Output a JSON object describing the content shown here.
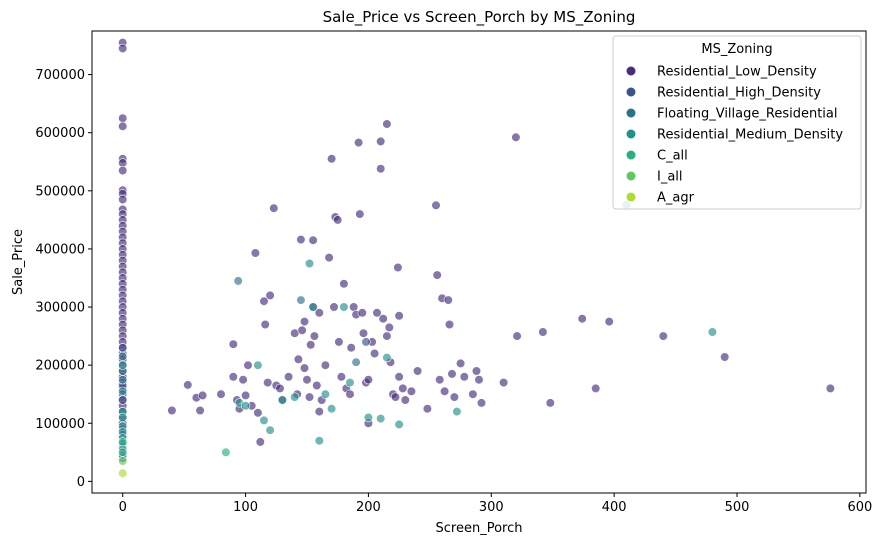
{
  "chart_data": {
    "type": "scatter",
    "title": "Sale_Price vs Screen_Porch by MS_Zoning",
    "xlabel": "Screen_Porch",
    "ylabel": "Sale_Price",
    "xlim": [
      -25,
      605
    ],
    "ylim": [
      -20000,
      775000
    ],
    "xticks": [
      0,
      100,
      200,
      300,
      400,
      500,
      600
    ],
    "yticks": [
      0,
      100000,
      200000,
      300000,
      400000,
      500000,
      600000,
      700000
    ],
    "grid": false,
    "legend": {
      "title": "MS_Zoning",
      "placement": "top-right"
    },
    "series": [
      {
        "name": "Residential_Low_Density",
        "color": "#472d7b",
        "points": [
          [
            0,
            755000
          ],
          [
            0,
            745000
          ],
          [
            0,
            625000
          ],
          [
            0,
            611000
          ],
          [
            0,
            555000
          ],
          [
            0,
            548000
          ],
          [
            0,
            535000
          ],
          [
            0,
            501000
          ],
          [
            0,
            495000
          ],
          [
            0,
            485000
          ],
          [
            0,
            468000
          ],
          [
            0,
            460000
          ],
          [
            0,
            450000
          ],
          [
            0,
            440000
          ],
          [
            0,
            430000
          ],
          [
            0,
            420000
          ],
          [
            0,
            410000
          ],
          [
            0,
            400000
          ],
          [
            0,
            390000
          ],
          [
            0,
            380000
          ],
          [
            0,
            370000
          ],
          [
            0,
            360000
          ],
          [
            0,
            350000
          ],
          [
            0,
            340000
          ],
          [
            0,
            330000
          ],
          [
            0,
            320000
          ],
          [
            0,
            310000
          ],
          [
            0,
            300000
          ],
          [
            0,
            290000
          ],
          [
            0,
            280000
          ],
          [
            0,
            270000
          ],
          [
            0,
            260000
          ],
          [
            0,
            250000
          ],
          [
            0,
            240000
          ],
          [
            0,
            230000
          ],
          [
            0,
            220000
          ],
          [
            0,
            210000
          ],
          [
            0,
            200000
          ],
          [
            0,
            190000
          ],
          [
            0,
            180000
          ],
          [
            0,
            170000
          ],
          [
            0,
            160000
          ],
          [
            0,
            150000
          ],
          [
            0,
            140000
          ],
          [
            0,
            130000
          ],
          [
            0,
            120000
          ],
          [
            0,
            110000
          ],
          [
            0,
            100000
          ],
          [
            0,
            90000
          ],
          [
            0,
            80000
          ],
          [
            0,
            60000
          ],
          [
            0,
            40000
          ],
          [
            40,
            122000
          ],
          [
            53,
            166000
          ],
          [
            60,
            144000
          ],
          [
            63,
            122000
          ],
          [
            65,
            148000
          ],
          [
            80,
            150000
          ],
          [
            90,
            236000
          ],
          [
            90,
            180000
          ],
          [
            93,
            140000
          ],
          [
            95,
            125000
          ],
          [
            98,
            175000
          ],
          [
            100,
            148000
          ],
          [
            102,
            200000
          ],
          [
            105,
            130000
          ],
          [
            108,
            393000
          ],
          [
            110,
            118000
          ],
          [
            112,
            68000
          ],
          [
            115,
            310000
          ],
          [
            116,
            270000
          ],
          [
            118,
            170000
          ],
          [
            120,
            320000
          ],
          [
            123,
            470000
          ],
          [
            125,
            165000
          ],
          [
            128,
            160000
          ],
          [
            130,
            140000
          ],
          [
            135,
            180000
          ],
          [
            140,
            255000
          ],
          [
            142,
            150000
          ],
          [
            143,
            210000
          ],
          [
            145,
            416000
          ],
          [
            146,
            260000
          ],
          [
            148,
            275000
          ],
          [
            148,
            195000
          ],
          [
            150,
            175000
          ],
          [
            152,
            145000
          ],
          [
            153,
            235000
          ],
          [
            155,
            415000
          ],
          [
            155,
            300000
          ],
          [
            156,
            250000
          ],
          [
            158,
            165000
          ],
          [
            160,
            290000
          ],
          [
            160,
            120000
          ],
          [
            162,
            140000
          ],
          [
            165,
            200000
          ],
          [
            168,
            385000
          ],
          [
            170,
            555000
          ],
          [
            172,
            300000
          ],
          [
            173,
            455000
          ],
          [
            175,
            450000
          ],
          [
            176,
            240000
          ],
          [
            178,
            180000
          ],
          [
            180,
            340000
          ],
          [
            182,
            160000
          ],
          [
            185,
            150000
          ],
          [
            186,
            230000
          ],
          [
            188,
            300000
          ],
          [
            190,
            287000
          ],
          [
            192,
            583000
          ],
          [
            193,
            460000
          ],
          [
            195,
            290000
          ],
          [
            196,
            255000
          ],
          [
            198,
            170000
          ],
          [
            200,
            175000
          ],
          [
            200,
            100000
          ],
          [
            203,
            240000
          ],
          [
            205,
            220000
          ],
          [
            207,
            290000
          ],
          [
            210,
            585000
          ],
          [
            210,
            538000
          ],
          [
            212,
            280000
          ],
          [
            215,
            615000
          ],
          [
            215,
            250000
          ],
          [
            217,
            265000
          ],
          [
            218,
            205000
          ],
          [
            220,
            150000
          ],
          [
            222,
            145000
          ],
          [
            224,
            368000
          ],
          [
            225,
            285000
          ],
          [
            225,
            180000
          ],
          [
            228,
            160000
          ],
          [
            230,
            140000
          ],
          [
            235,
            155000
          ],
          [
            240,
            190000
          ],
          [
            248,
            125000
          ],
          [
            255,
            475000
          ],
          [
            256,
            355000
          ],
          [
            258,
            175000
          ],
          [
            260,
            315000
          ],
          [
            262,
            155000
          ],
          [
            265,
            312000
          ],
          [
            266,
            270000
          ],
          [
            268,
            185000
          ],
          [
            270,
            145000
          ],
          [
            275,
            203000
          ],
          [
            278,
            180000
          ],
          [
            285,
            150000
          ],
          [
            288,
            190000
          ],
          [
            290,
            175000
          ],
          [
            292,
            135000
          ],
          [
            310,
            170000
          ],
          [
            320,
            592000
          ],
          [
            321,
            250000
          ],
          [
            342,
            257000
          ],
          [
            348,
            135000
          ],
          [
            374,
            280000
          ],
          [
            385,
            160000
          ],
          [
            396,
            275000
          ],
          [
            440,
            250000
          ],
          [
            490,
            214000
          ],
          [
            576,
            160000
          ]
        ]
      },
      {
        "name": "Residential_High_Density",
        "color": "#3b528b",
        "points": [
          [
            0,
            230000
          ],
          [
            0,
            165000
          ],
          [
            0,
            140000
          ],
          [
            198,
            240000
          ]
        ]
      },
      {
        "name": "Floating_Village_Residential",
        "color": "#2c728e",
        "points": [
          [
            0,
            215000
          ],
          [
            0,
            190000
          ],
          [
            0,
            175000
          ],
          [
            94,
            345000
          ],
          [
            145,
            312000
          ],
          [
            190,
            205000
          ],
          [
            410,
            476000
          ]
        ]
      },
      {
        "name": "Residential_Medium_Density",
        "color": "#21918c",
        "points": [
          [
            0,
            200000
          ],
          [
            0,
            155000
          ],
          [
            0,
            120000
          ],
          [
            0,
            110000
          ],
          [
            0,
            95000
          ],
          [
            0,
            85000
          ],
          [
            0,
            75000
          ],
          [
            0,
            65000
          ],
          [
            0,
            55000
          ],
          [
            0,
            45000
          ],
          [
            95,
            135000
          ],
          [
            100,
            130000
          ],
          [
            110,
            200000
          ],
          [
            115,
            105000
          ],
          [
            120,
            88000
          ],
          [
            130,
            140000
          ],
          [
            140,
            145000
          ],
          [
            152,
            375000
          ],
          [
            155,
            300000
          ],
          [
            160,
            70000
          ],
          [
            165,
            150000
          ],
          [
            170,
            125000
          ],
          [
            180,
            300000
          ],
          [
            185,
            170000
          ],
          [
            200,
            110000
          ],
          [
            210,
            108000
          ],
          [
            215,
            213000
          ],
          [
            225,
            98000
          ],
          [
            272,
            120000
          ],
          [
            480,
            257000
          ]
        ]
      },
      {
        "name": "C_all",
        "color": "#28ae80",
        "points": [
          [
            0,
            68000
          ],
          [
            0,
            50000
          ],
          [
            84,
            50000
          ]
        ]
      },
      {
        "name": "I_all",
        "color": "#5ec962",
        "points": [
          [
            0,
            35000
          ]
        ]
      },
      {
        "name": "A_agr",
        "color": "#addc30",
        "points": [
          [
            0,
            14000
          ]
        ]
      }
    ]
  }
}
